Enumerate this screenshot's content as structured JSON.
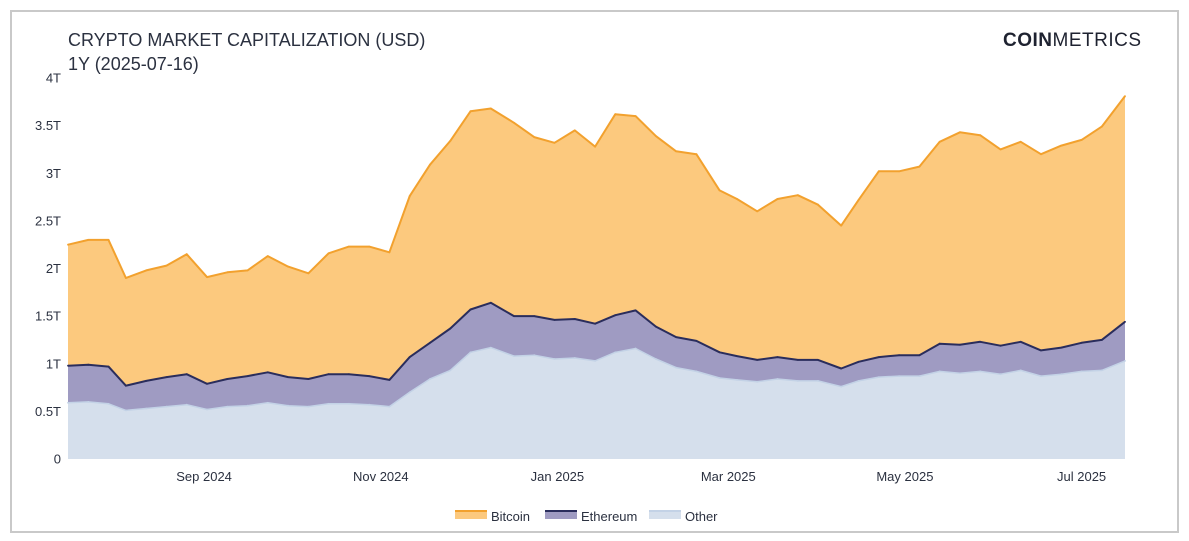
{
  "logo": {
    "bold": "COIN",
    "light": "METRICS"
  },
  "colors": {
    "bitcoin_fill": "#fcc97e",
    "bitcoin_line": "#f2a12e",
    "ethereum_fill": "#9f9bc2",
    "ethereum_line": "#2a2d5c",
    "other_fill": "#d5dfec",
    "other_line": "#c3d2e6"
  },
  "chart_data": {
    "type": "area",
    "stacked": true,
    "title": "CRYPTO MARKET CAPITALIZATION (USD)",
    "subtitle": "1Y (2025-07-16)",
    "xlabel": "",
    "ylabel": "",
    "ylim": [
      0,
      4
    ],
    "y_unit": "T",
    "y_ticks": [
      {
        "value": 0,
        "label": "0"
      },
      {
        "value": 0.5,
        "label": "0.5T"
      },
      {
        "value": 1,
        "label": "1T"
      },
      {
        "value": 1.5,
        "label": "1.5T"
      },
      {
        "value": 2,
        "label": "2T"
      },
      {
        "value": 2.5,
        "label": "2.5T"
      },
      {
        "value": 3,
        "label": "3T"
      },
      {
        "value": 3.5,
        "label": "3.5T"
      },
      {
        "value": 4,
        "label": "4T"
      }
    ],
    "x_range": [
      "2024-07-16",
      "2025-07-16"
    ],
    "x_ticks": [
      {
        "date": "2024-09-01",
        "label": "Sep 2024"
      },
      {
        "date": "2024-11-01",
        "label": "Nov 2024"
      },
      {
        "date": "2025-01-01",
        "label": "Jan 2025"
      },
      {
        "date": "2025-03-01",
        "label": "Mar 2025"
      },
      {
        "date": "2025-05-01",
        "label": "May 2025"
      },
      {
        "date": "2025-07-01",
        "label": "Jul 2025"
      }
    ],
    "grid": false,
    "legend_position": "bottom-center",
    "x": [
      "2024-07-16",
      "2024-07-23",
      "2024-07-30",
      "2024-08-05",
      "2024-08-12",
      "2024-08-19",
      "2024-08-26",
      "2024-09-02",
      "2024-09-09",
      "2024-09-16",
      "2024-09-23",
      "2024-09-30",
      "2024-10-07",
      "2024-10-14",
      "2024-10-21",
      "2024-10-28",
      "2024-11-04",
      "2024-11-11",
      "2024-11-18",
      "2024-11-25",
      "2024-12-02",
      "2024-12-09",
      "2024-12-17",
      "2024-12-24",
      "2024-12-31",
      "2025-01-07",
      "2025-01-14",
      "2025-01-21",
      "2025-01-28",
      "2025-02-04",
      "2025-02-11",
      "2025-02-18",
      "2025-02-26",
      "2025-03-04",
      "2025-03-11",
      "2025-03-18",
      "2025-03-25",
      "2025-04-01",
      "2025-04-09",
      "2025-04-15",
      "2025-04-22",
      "2025-04-29",
      "2025-05-06",
      "2025-05-13",
      "2025-05-20",
      "2025-05-27",
      "2025-06-03",
      "2025-06-10",
      "2025-06-17",
      "2025-06-24",
      "2025-07-01",
      "2025-07-08",
      "2025-07-16"
    ],
    "series": [
      {
        "name": "Other",
        "values": [
          0.59,
          0.6,
          0.58,
          0.51,
          0.53,
          0.55,
          0.57,
          0.52,
          0.55,
          0.56,
          0.59,
          0.56,
          0.55,
          0.58,
          0.58,
          0.57,
          0.55,
          0.7,
          0.84,
          0.93,
          1.12,
          1.17,
          1.08,
          1.09,
          1.05,
          1.06,
          1.03,
          1.12,
          1.16,
          1.05,
          0.96,
          0.92,
          0.85,
          0.83,
          0.81,
          0.84,
          0.82,
          0.82,
          0.76,
          0.82,
          0.86,
          0.87,
          0.87,
          0.92,
          0.9,
          0.92,
          0.89,
          0.93,
          0.87,
          0.89,
          0.92,
          0.93,
          1.03
        ]
      },
      {
        "name": "Ethereum",
        "values": [
          0.39,
          0.39,
          0.39,
          0.26,
          0.29,
          0.31,
          0.32,
          0.27,
          0.29,
          0.31,
          0.32,
          0.3,
          0.29,
          0.31,
          0.31,
          0.3,
          0.28,
          0.37,
          0.38,
          0.44,
          0.45,
          0.47,
          0.42,
          0.41,
          0.41,
          0.41,
          0.39,
          0.39,
          0.4,
          0.34,
          0.32,
          0.32,
          0.27,
          0.25,
          0.23,
          0.23,
          0.22,
          0.22,
          0.19,
          0.2,
          0.21,
          0.22,
          0.22,
          0.29,
          0.3,
          0.31,
          0.3,
          0.3,
          0.27,
          0.28,
          0.3,
          0.32,
          0.41
        ]
      },
      {
        "name": "Bitcoin",
        "values": [
          1.27,
          1.31,
          1.33,
          1.13,
          1.16,
          1.17,
          1.26,
          1.12,
          1.12,
          1.11,
          1.22,
          1.16,
          1.11,
          1.27,
          1.34,
          1.36,
          1.34,
          1.69,
          1.87,
          1.97,
          2.08,
          2.04,
          2.03,
          1.88,
          1.86,
          1.98,
          1.86,
          2.11,
          2.04,
          2.0,
          1.95,
          1.96,
          1.7,
          1.65,
          1.56,
          1.66,
          1.73,
          1.63,
          1.5,
          1.7,
          1.95,
          1.93,
          1.98,
          2.12,
          2.23,
          2.17,
          2.06,
          2.1,
          2.06,
          2.12,
          2.13,
          2.24,
          2.37
        ]
      }
    ]
  }
}
